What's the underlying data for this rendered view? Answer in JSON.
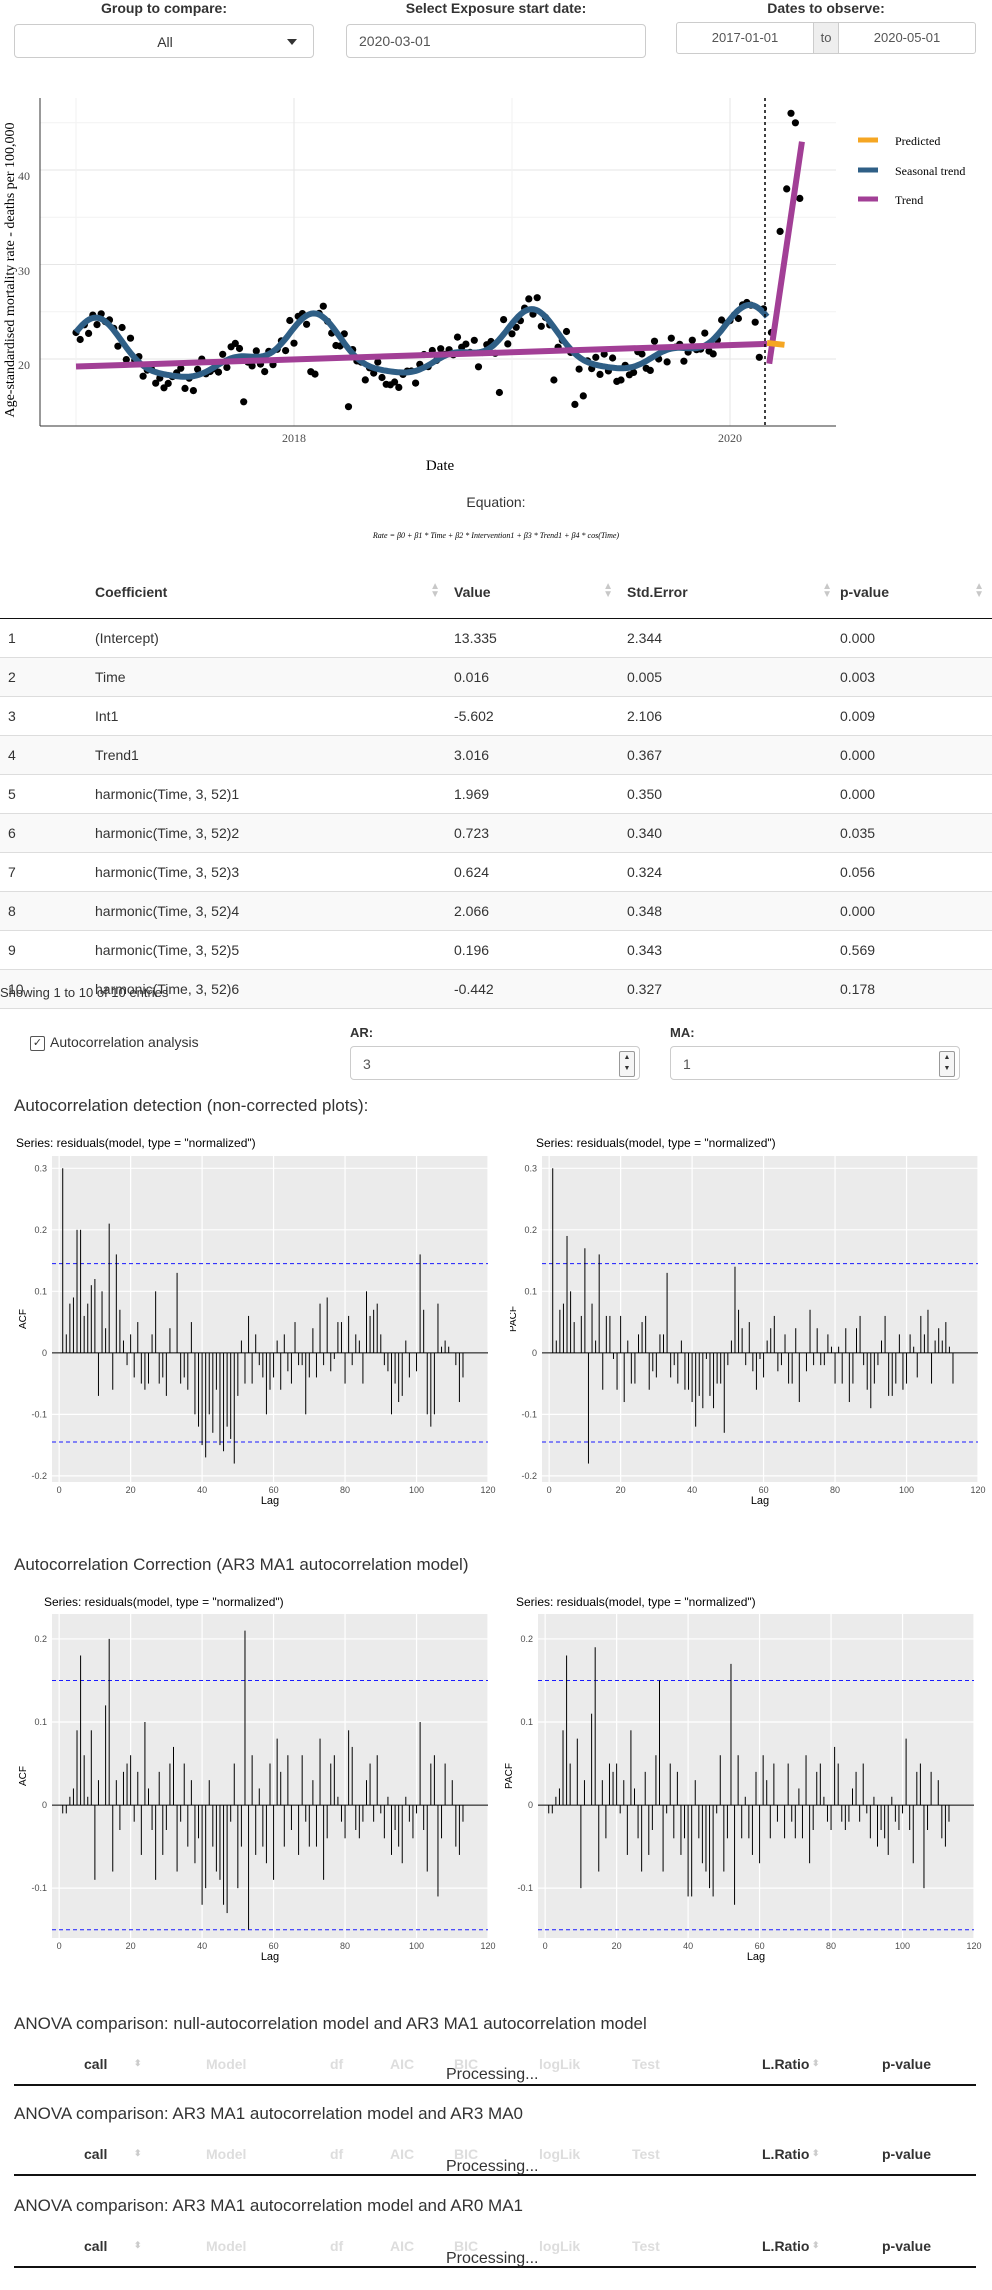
{
  "controls": {
    "group_label": "Group to compare:",
    "group_value": "All",
    "exposure_label": "Select Exposure start date:",
    "exposure_value": "2020-03-01",
    "dates_label": "Dates to observe:",
    "date_from": "2017-01-01",
    "date_to_sep": "to",
    "date_to": "2020-05-01"
  },
  "main_chart": {
    "ylabel": "Age-standardised mortality rate - deaths per 100,000",
    "xlabel": "Date",
    "y_ticks": [
      "20",
      "30",
      "40"
    ],
    "x_ticks": [
      "2018",
      "2020"
    ],
    "legend": [
      "Predicted",
      "Seasonal trend",
      "Trend"
    ],
    "colors": {
      "predicted": "#f5a623",
      "seasonal": "#2f5f86",
      "trend": "#a23f96",
      "points": "#000000"
    }
  },
  "chart_data": [
    {
      "type": "scatter",
      "xlabel": "Date",
      "ylabel": "Age-standardised mortality rate - deaths per 100,000",
      "xlim": [
        "2016-12",
        "2020-07"
      ],
      "ylim": [
        13,
        48
      ],
      "x_ticks": [
        "2018",
        "2020"
      ],
      "y_ticks": [
        20,
        30,
        40
      ],
      "legend_position": "right",
      "exposure_line": "2020-03",
      "series": [
        {
          "name": "Seasonal trend",
          "type": "line"
        },
        {
          "name": "Trend",
          "type": "line"
        },
        {
          "name": "Predicted",
          "type": "line"
        }
      ]
    },
    {
      "type": "bar",
      "title": "Series: residuals(model, type = \"normalized\")",
      "xlabel": "Lag",
      "ylabel": "ACF",
      "xlim": [
        -2,
        120
      ],
      "ylim": [
        -0.21,
        0.32
      ],
      "confidence": 0.145,
      "values": [
        0.3,
        0.03,
        0.08,
        0.09,
        0.2,
        0.2,
        0.06,
        0.08,
        0.11,
        0.12,
        -0.07,
        0.1,
        0.04,
        0.21,
        -0.06,
        0.16,
        0.07,
        0.02,
        -0.02,
        0.03,
        -0.04,
        0.05,
        -0.05,
        -0.06,
        -0.05,
        0.03,
        0.1,
        -0.05,
        -0.04,
        -0.07,
        0.04,
        0.0,
        0.13,
        -0.05,
        -0.04,
        -0.06,
        0.05,
        -0.1,
        -0.12,
        -0.15,
        -0.17,
        -0.1,
        -0.13,
        -0.06,
        -0.15,
        -0.16,
        -0.12,
        -0.14,
        -0.18,
        -0.07,
        0.02,
        -0.05,
        0.06,
        -0.05,
        0.03,
        -0.02,
        -0.04,
        -0.1,
        -0.06,
        -0.04,
        0.02,
        -0.06,
        0.03,
        -0.03,
        -0.05,
        0.05,
        -0.02,
        -0.02,
        -0.1,
        -0.04,
        0.04,
        -0.04,
        0.08,
        -0.02,
        0.09,
        -0.03,
        -0.01,
        0.05,
        0.05,
        -0.05,
        0.06,
        -0.02,
        0.03,
        0.02,
        -0.05,
        0.1,
        0.06,
        0.07,
        0.08,
        0.03,
        -0.02,
        -0.03,
        -0.1,
        -0.05,
        -0.08,
        -0.07,
        0.02,
        -0.04,
        0.0,
        -0.03,
        0.16,
        0.07,
        -0.1,
        -0.12,
        -0.1,
        0.08,
        0.01,
        0.02,
        0.01,
        0.0,
        -0.02,
        -0.08,
        -0.04
      ]
    },
    {
      "type": "bar",
      "title": "Series: residuals(model, type = \"normalized\")",
      "xlabel": "Lag",
      "ylabel": "PACF",
      "xlim": [
        -2,
        120
      ],
      "ylim": [
        -0.21,
        0.32
      ],
      "confidence": 0.145,
      "values": [
        0.3,
        0.02,
        0.07,
        0.08,
        0.19,
        0.1,
        0.05,
        0.0,
        0.06,
        0.17,
        -0.18,
        0.08,
        0.02,
        0.16,
        -0.06,
        0.06,
        0.06,
        -0.01,
        -0.06,
        0.06,
        -0.08,
        0.02,
        -0.05,
        -0.05,
        0.03,
        0.05,
        0.06,
        -0.06,
        -0.03,
        -0.04,
        0.03,
        0.03,
        0.13,
        -0.04,
        -0.02,
        -0.05,
        0.02,
        -0.06,
        -0.06,
        -0.08,
        -0.12,
        -0.07,
        -0.09,
        -0.01,
        -0.07,
        -0.09,
        -0.05,
        -0.05,
        -0.13,
        -0.02,
        0.02,
        0.14,
        0.07,
        0.04,
        -0.02,
        0.05,
        -0.03,
        -0.06,
        -0.01,
        -0.04,
        0.02,
        0.04,
        0.06,
        -0.03,
        -0.02,
        0.03,
        -0.05,
        -0.05,
        0.04,
        -0.08,
        0.0,
        -0.03,
        0.07,
        -0.02,
        0.04,
        -0.02,
        -0.02,
        0.03,
        0.01,
        -0.05,
        0.01,
        -0.05,
        0.04,
        -0.08,
        -0.05,
        0.04,
        0.06,
        -0.02,
        -0.06,
        -0.09,
        -0.05,
        -0.02,
        0.02,
        0.06,
        -0.07,
        -0.07,
        -0.05,
        0.03,
        -0.06,
        -0.05,
        0.03,
        0.01,
        -0.04,
        0.06,
        0.03,
        0.07,
        -0.05,
        0.02,
        0.04,
        0.02,
        0.05,
        0.01,
        -0.05,
        0.0
      ]
    },
    {
      "type": "bar",
      "title": "Series: residuals(model, type = \"normalized\")",
      "xlabel": "Lag",
      "ylabel": "ACF",
      "xlim": [
        -2,
        120
      ],
      "ylim": [
        -0.16,
        0.23
      ],
      "confidence": 0.15,
      "values": [
        -0.01,
        -0.01,
        0.01,
        0.02,
        0.09,
        0.18,
        0.06,
        0.01,
        0.09,
        -0.09,
        0.03,
        0.0,
        0.12,
        0.2,
        -0.08,
        0.03,
        -0.03,
        0.04,
        0.05,
        0.06,
        -0.02,
        0.04,
        -0.06,
        0.1,
        0.02,
        -0.03,
        -0.09,
        0.04,
        -0.06,
        -0.03,
        0.05,
        0.07,
        -0.08,
        -0.02,
        0.05,
        -0.05,
        0.03,
        -0.07,
        -0.04,
        -0.12,
        -0.1,
        0.03,
        -0.05,
        -0.08,
        -0.09,
        -0.12,
        -0.13,
        -0.02,
        0.05,
        -0.1,
        -0.05,
        0.21,
        -0.15,
        0.06,
        -0.06,
        0.02,
        -0.05,
        -0.07,
        0.05,
        -0.09,
        0.08,
        0.04,
        -0.05,
        0.06,
        -0.03,
        0.0,
        -0.06,
        0.06,
        -0.02,
        -0.05,
        0.03,
        -0.05,
        0.08,
        -0.09,
        -0.04,
        0.05,
        0.06,
        0.01,
        -0.02,
        -0.04,
        0.09,
        0.07,
        -0.03,
        -0.04,
        -0.02,
        0.03,
        0.05,
        -0.02,
        0.06,
        -0.01,
        -0.04,
        0.01,
        -0.06,
        -0.03,
        -0.05,
        -0.07,
        0.01,
        -0.02,
        -0.04,
        -0.01,
        0.1,
        -0.03,
        -0.08,
        0.05,
        0.06,
        -0.11,
        -0.04,
        0.05,
        0.0,
        0.03,
        -0.05,
        -0.06,
        -0.02
      ]
    },
    {
      "type": "bar",
      "title": "Series: residuals(model, type = \"normalized\")",
      "xlabel": "Lag",
      "ylabel": "PACF",
      "xlim": [
        -2,
        120
      ],
      "ylim": [
        -0.16,
        0.23
      ],
      "confidence": 0.15,
      "values": [
        -0.01,
        -0.01,
        0.01,
        0.02,
        0.09,
        0.18,
        0.05,
        0.0,
        0.08,
        -0.1,
        0.03,
        0.0,
        0.11,
        0.19,
        -0.08,
        0.03,
        -0.04,
        0.05,
        0.04,
        0.05,
        -0.01,
        0.03,
        -0.06,
        0.09,
        0.02,
        -0.04,
        -0.08,
        0.04,
        -0.06,
        -0.03,
        0.06,
        0.15,
        -0.08,
        -0.01,
        0.05,
        -0.04,
        0.04,
        -0.06,
        -0.04,
        -0.11,
        -0.11,
        0.03,
        -0.04,
        -0.07,
        -0.08,
        -0.1,
        -0.11,
        -0.01,
        0.06,
        -0.08,
        -0.04,
        0.17,
        -0.12,
        0.06,
        -0.04,
        0.01,
        -0.04,
        -0.06,
        0.04,
        -0.07,
        0.06,
        0.03,
        -0.04,
        0.05,
        -0.02,
        0.0,
        -0.04,
        0.05,
        -0.02,
        -0.04,
        0.02,
        -0.04,
        0.06,
        -0.07,
        -0.03,
        0.04,
        0.05,
        0.01,
        -0.02,
        -0.03,
        0.07,
        0.05,
        -0.02,
        -0.03,
        -0.02,
        0.02,
        0.04,
        -0.02,
        0.05,
        -0.01,
        -0.04,
        0.01,
        -0.05,
        -0.03,
        -0.04,
        -0.06,
        0.01,
        -0.02,
        -0.03,
        -0.01,
        0.08,
        -0.03,
        -0.07,
        0.04,
        0.05,
        -0.1,
        -0.03,
        0.04,
        0.0,
        0.03,
        -0.04,
        -0.05,
        -0.02
      ]
    }
  ],
  "equation": {
    "label": "Equation:",
    "text": "Rate = β0 + β1 * Time + β2 * Intervention1 + β3 * Trend1 + β4 * cos(Time)"
  },
  "coef_table": {
    "headers": [
      "",
      "Coefficient",
      "Value",
      "Std.Error",
      "p-value"
    ],
    "rows": [
      [
        "1",
        "(Intercept)",
        "13.335",
        "2.344",
        "0.000"
      ],
      [
        "2",
        "Time",
        "0.016",
        "0.005",
        "0.003"
      ],
      [
        "3",
        "Int1",
        "-5.602",
        "2.106",
        "0.009"
      ],
      [
        "4",
        "Trend1",
        "3.016",
        "0.367",
        "0.000"
      ],
      [
        "5",
        "harmonic(Time, 3, 52)1",
        "1.969",
        "0.350",
        "0.000"
      ],
      [
        "6",
        "harmonic(Time, 3, 52)2",
        "0.723",
        "0.340",
        "0.035"
      ],
      [
        "7",
        "harmonic(Time, 3, 52)3",
        "0.624",
        "0.324",
        "0.056"
      ],
      [
        "8",
        "harmonic(Time, 3, 52)4",
        "2.066",
        "0.348",
        "0.000"
      ],
      [
        "9",
        "harmonic(Time, 3, 52)5",
        "0.196",
        "0.343",
        "0.569"
      ],
      [
        "10",
        "harmonic(Time, 3, 52)6",
        "-0.442",
        "0.327",
        "0.178"
      ]
    ],
    "info": "Showing 1 to 10 of 10 entries"
  },
  "autocorr": {
    "checkbox_label": "Autocorrelation analysis",
    "checked": true,
    "ar_label": "AR:",
    "ar_value": "3",
    "ma_label": "MA:",
    "ma_value": "1"
  },
  "sections": {
    "detection_title": "Autocorrelation detection (non-corrected plots):",
    "correction_title": "Autocorrelation Correction (AR3 MA1 autocorrelation model)",
    "panel_title": "Series: residuals(model, type = \"normalized\")",
    "lag_label": "Lag",
    "acf_label": "ACF",
    "pacf_label": "PACF"
  },
  "anova": [
    {
      "title": "ANOVA comparison: null-autocorrelation model and AR3 MA1 autocorrelation model"
    },
    {
      "title": "ANOVA comparison: AR3 MA1 autocorrelation model and AR3 MA0"
    },
    {
      "title": "ANOVA comparison: AR3 MA1 autocorrelation model and AR0 MA1"
    }
  ],
  "anova_headers": [
    "call",
    "Model",
    "df",
    "AIC",
    "BIC",
    "logLik",
    "Test",
    "L.Ratio",
    "p-value"
  ],
  "processing_text": "Processing..."
}
